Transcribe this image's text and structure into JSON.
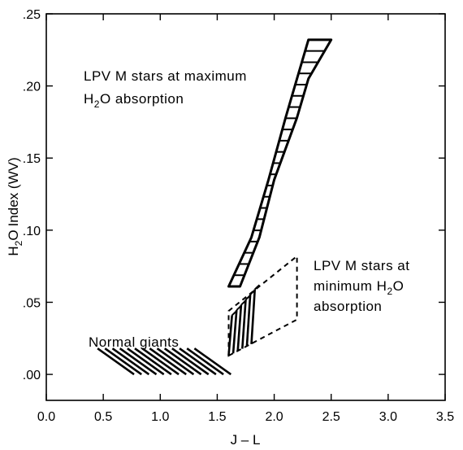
{
  "chart_data": {
    "type": "area",
    "title": "",
    "xlabel": "J – L",
    "ylabel": "Index  (WV)",
    "ylabel_prefix": "H",
    "ylabel_sub": "2",
    "ylabel_suffix": "O",
    "xlim": [
      0.0,
      3.5
    ],
    "ylim": [
      -0.018,
      0.25
    ],
    "x_ticks": [
      0.0,
      0.5,
      1.0,
      1.5,
      2.0,
      2.5,
      3.0,
      3.5
    ],
    "x_tick_labels": [
      "0.0",
      "0.5",
      "1.0",
      "1.5",
      "2.0",
      "2.5",
      "3.0",
      "3.5"
    ],
    "y_ticks": [
      0.0,
      0.05,
      0.1,
      0.15,
      0.2,
      0.25
    ],
    "y_tick_labels": [
      ".00",
      ".05",
      ".10",
      ".15",
      ".20",
      ".25"
    ],
    "grid": false,
    "regions": [
      {
        "name": "LPV M stars at maximum H2O absorption",
        "style": "hatched-band",
        "left_edge": [
          [
            1.6,
            0.061
          ],
          [
            1.8,
            0.095
          ],
          [
            1.95,
            0.135
          ],
          [
            2.1,
            0.178
          ],
          [
            2.2,
            0.205
          ],
          [
            2.3,
            0.232
          ]
        ],
        "right_edge": [
          [
            1.7,
            0.061
          ],
          [
            1.87,
            0.095
          ],
          [
            2.0,
            0.135
          ],
          [
            2.2,
            0.178
          ],
          [
            2.3,
            0.205
          ],
          [
            2.5,
            0.232
          ]
        ],
        "label_lines": [
          {
            "text": "LPV   M stars at maximum"
          },
          {
            "prefix": "H",
            "sub": "2",
            "suffix": "O  absorption"
          }
        ]
      },
      {
        "name": "LPV M stars at minimum H2O absorption",
        "style": "dashed-outline",
        "outline": [
          [
            1.6,
            0.013
          ],
          [
            2.2,
            0.038
          ],
          [
            2.2,
            0.082
          ],
          [
            1.6,
            0.044
          ]
        ],
        "ticks_x": [
          1.6,
          1.64,
          1.68,
          1.72,
          1.76,
          1.8
        ],
        "label_lines": [
          {
            "text": "LPV M stars at"
          },
          {
            "prefix": "minimum  H",
            "sub": "2",
            "suffix": "O"
          },
          {
            "text": "absorption"
          }
        ]
      },
      {
        "name": "Normal giants",
        "style": "diagonal-hatch",
        "x_range": [
          0.45,
          1.6
        ],
        "y_range": [
          0.0,
          0.018
        ],
        "label_lines": [
          {
            "text": "Normal giants"
          }
        ]
      }
    ]
  }
}
